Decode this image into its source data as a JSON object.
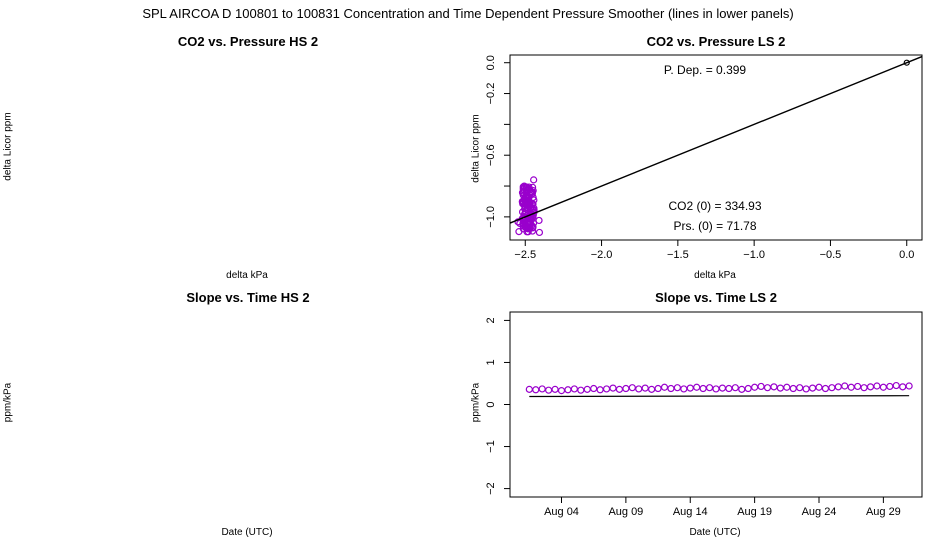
{
  "main_title": "SPL   AIRCOA D   100801 to 100831   Concentration and Time Dependent Pressure Smoother (lines in lower panels)",
  "panels": {
    "hs_co2": {
      "title": "CO2 vs. Pressure HS 2",
      "xlabel": "delta kPa",
      "ylabel": "delta Licor ppm"
    },
    "ls_co2": {
      "title": "CO2 vs. Pressure LS 2",
      "xlabel": "delta kPa",
      "ylabel": "delta Licor ppm"
    },
    "hs_slope": {
      "title": "Slope vs. Time HS 2",
      "xlabel": "Date (UTC)",
      "ylabel": "ppm/kPa"
    },
    "ls_slope": {
      "title": "Slope vs. Time LS 2",
      "xlabel": "Date (UTC)",
      "ylabel": "ppm/kPa"
    }
  },
  "annotations": {
    "p_dep": "P. Dep. =  0.399",
    "co2_zero": "CO2 (0) =  334.93",
    "prs_zero": "Prs. (0) = 71.78"
  },
  "chart_data": [
    {
      "type": "scatter",
      "title": "CO2 vs. Pressure LS 2",
      "xlabel": "delta kPa",
      "ylabel": "delta Licor ppm",
      "xlim": [
        -2.6,
        0.1
      ],
      "ylim": [
        -1.15,
        0.05
      ],
      "xticks": [
        -2.5,
        -2.0,
        -1.5,
        -1.0,
        -0.5,
        0.0
      ],
      "xtick_labels": [
        "−2.5",
        "−2.0",
        "−1.5",
        "−1.0",
        "−0.5",
        "0.0"
      ],
      "yticks": [
        0.0,
        -0.2,
        -0.4,
        -0.6,
        -0.8,
        -1.0
      ],
      "ytick_labels": [
        "0.0",
        "−0.2",
        "",
        "−0.6",
        "",
        "−1.0"
      ],
      "fit_line": {
        "x": [
          -2.6,
          0.1
        ],
        "y": [
          -1.04,
          0.04
        ],
        "slope": 0.399
      },
      "origin_point": {
        "x": 0.0,
        "y": 0.0
      },
      "cluster": {
        "x_range": [
          -2.56,
          -2.4
        ],
        "y_range": [
          -1.12,
          -0.76
        ]
      },
      "marker_color": "#9900cc",
      "line_color": "#000000"
    },
    {
      "type": "line",
      "title": "Slope vs. Time LS 2",
      "xlabel": "Date (UTC)",
      "ylabel": "ppm/kPa",
      "xlim": [
        0.0,
        32.0
      ],
      "ylim": [
        -2.2,
        2.2
      ],
      "xticks": [
        4,
        9,
        14,
        19,
        24,
        29
      ],
      "xtick_labels": [
        "Aug 04",
        "Aug 09",
        "Aug 14",
        "Aug 19",
        "Aug 24",
        "Aug 29"
      ],
      "yticks": [
        -2,
        -1,
        0,
        1,
        2
      ],
      "ytick_labels": [
        "−2",
        "−1",
        "0",
        "1",
        "2"
      ],
      "series": [
        {
          "kind": "points",
          "color": "#9900cc",
          "x": [
            1.5,
            2.0,
            2.5,
            3.0,
            3.5,
            4.0,
            4.5,
            5.0,
            5.5,
            6.0,
            6.5,
            7.0,
            7.5,
            8.0,
            8.5,
            9.0,
            9.5,
            10.0,
            10.5,
            11.0,
            11.5,
            12.0,
            12.5,
            13.0,
            13.5,
            14.0,
            14.5,
            15.0,
            15.5,
            16.0,
            16.5,
            17.0,
            17.5,
            18.0,
            18.5,
            19.0,
            19.5,
            20.0,
            20.5,
            21.0,
            21.5,
            22.0,
            22.5,
            23.0,
            23.5,
            24.0,
            24.5,
            25.0,
            25.5,
            26.0,
            26.5,
            27.0,
            27.5,
            28.0,
            28.5,
            29.0,
            29.5,
            30.0,
            30.5,
            31.0
          ],
          "y": [
            0.36,
            0.35,
            0.37,
            0.34,
            0.36,
            0.33,
            0.35,
            0.37,
            0.34,
            0.36,
            0.38,
            0.35,
            0.37,
            0.39,
            0.36,
            0.38,
            0.4,
            0.37,
            0.39,
            0.36,
            0.38,
            0.41,
            0.38,
            0.4,
            0.37,
            0.39,
            0.41,
            0.38,
            0.4,
            0.37,
            0.39,
            0.38,
            0.4,
            0.36,
            0.38,
            0.41,
            0.43,
            0.4,
            0.42,
            0.39,
            0.41,
            0.38,
            0.4,
            0.37,
            0.39,
            0.41,
            0.38,
            0.4,
            0.42,
            0.44,
            0.41,
            0.43,
            0.4,
            0.42,
            0.44,
            0.41,
            0.43,
            0.45,
            0.42,
            0.44
          ]
        },
        {
          "kind": "line",
          "color": "#000000",
          "x": [
            1.5,
            31.0
          ],
          "y": [
            0.19,
            0.21
          ]
        }
      ]
    }
  ]
}
